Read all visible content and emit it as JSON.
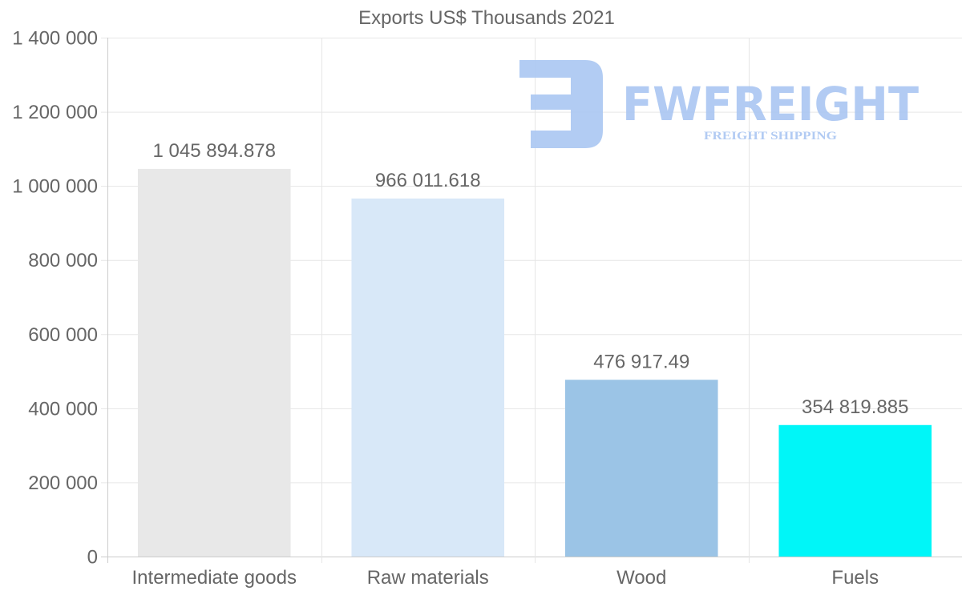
{
  "chart_data": {
    "type": "bar",
    "title": "Exports US$ Thousands 2021",
    "xlabel": "",
    "ylabel": "",
    "categories": [
      "Intermediate goods",
      "Raw materials",
      "Wood",
      "Fuels"
    ],
    "values": [
      1045894.878,
      966011.618,
      476917.49,
      354819.885
    ],
    "value_labels": [
      "1 045 894.878",
      "966 011.618",
      "476 917.49",
      "354 819.885"
    ],
    "colors": [
      "#e8e8e8",
      "#d8e8f8",
      "#9bc4e6",
      "#00f6f8"
    ],
    "ylim": [
      0,
      1400000
    ],
    "yticks": [
      0,
      200000,
      400000,
      600000,
      800000,
      1000000,
      1200000,
      1400000
    ],
    "ytick_labels": [
      "0",
      "200 000",
      "400 000",
      "600 000",
      "800 000",
      "1 000 000",
      "1 200 000",
      "1 400 000"
    ],
    "grid": true,
    "legend": "none"
  },
  "watermark": {
    "brand": "FWFREIGHT",
    "tagline": "FREIGHT SHIPPING",
    "color": "#aac6f2"
  }
}
